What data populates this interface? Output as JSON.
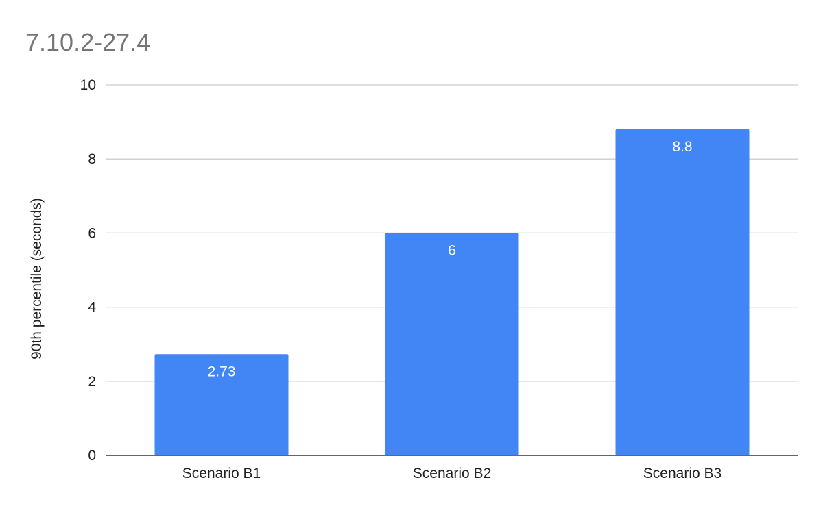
{
  "chart_data": {
    "type": "bar",
    "title": "7.10.2-27.4",
    "xlabel": "",
    "ylabel": "90th percentile (seconds)",
    "categories": [
      "Scenario B1",
      "Scenario B2",
      "Scenario B3"
    ],
    "values": [
      2.73,
      6,
      8.8
    ],
    "data_labels": [
      "2.73",
      "6",
      "8.8"
    ],
    "ylim": [
      0,
      10
    ],
    "yticks": [
      0,
      2,
      4,
      6,
      8,
      10
    ],
    "grid": true,
    "legend": "none",
    "colors": {
      "bar": "#4285f4",
      "title": "#757575",
      "grid": "#cccccc",
      "baseline": "#333333",
      "text": "#222222",
      "data_label": "#ffffff"
    }
  }
}
